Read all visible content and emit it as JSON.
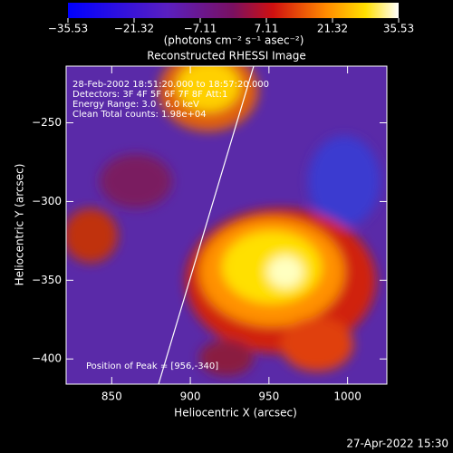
{
  "chart_data": {
    "type": "image",
    "title": "Reconstructed RHESSI Image",
    "x_label": "Heliocentric X (arcsec)",
    "y_label": "Heliocentric Y (arcsec)",
    "xlim": [
      821,
      1025
    ],
    "ylim": [
      -416,
      -214
    ],
    "xticks": [
      850,
      900,
      950,
      1000
    ],
    "yticks": [
      {
        "value": -250,
        "label": "−250"
      },
      {
        "value": -300,
        "label": "−300"
      },
      {
        "value": -350,
        "label": "−350"
      },
      {
        "value": -400,
        "label": "−400"
      }
    ],
    "colorbar": {
      "clim": [
        -35.53,
        35.53
      ],
      "ticks": [
        {
          "value": -35.53,
          "label": "−35.53"
        },
        {
          "value": -21.32,
          "label": "−21.32"
        },
        {
          "value": -7.11,
          "label": "−7.11"
        },
        7.11,
        21.32,
        35.53
      ],
      "label": "(photons cm⁻² s⁻¹ asec⁻²)"
    },
    "annotations": [
      "28-Feb-2002 18:51:20.000 to 18:57:20.000",
      "Detectors: 3F 4F 5F 6F 7F 8F  Att:1",
      "Energy Range: 3.0 - 6.0 keV",
      "Clean    Total counts: 1.98e+04"
    ],
    "peak_note": "Position of Peak = [956,-340]",
    "timestamp": "27-Apr-2022 15:30"
  }
}
